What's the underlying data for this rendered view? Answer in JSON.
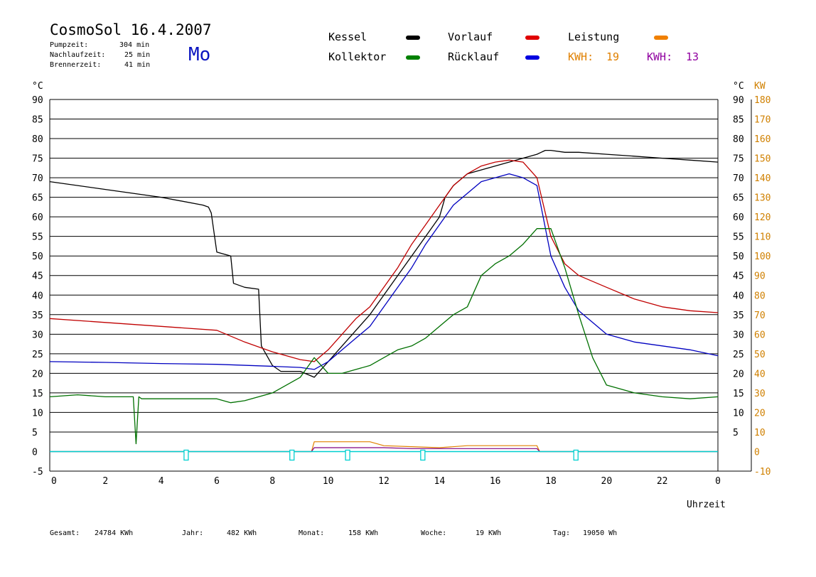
{
  "header": {
    "title": "CosmoSol 16.4.2007",
    "weekday": "Mo",
    "stats": [
      {
        "label": "Pumpzeit:",
        "value": "304 min"
      },
      {
        "label": "Nachlaufzeit:",
        "value": "25 min"
      },
      {
        "label": "Brennerzeit:",
        "value": "41 min"
      }
    ]
  },
  "legend": {
    "items": [
      {
        "name": "Kessel",
        "color": "#000000"
      },
      {
        "name": "Vorlauf",
        "color": "#e00000"
      },
      {
        "name": "Leistung",
        "color": "#f08000"
      },
      {
        "name": "Kollektor",
        "color": "#008000"
      },
      {
        "name": "Rücklauf",
        "color": "#0000e0"
      }
    ],
    "kwh": [
      {
        "label": "KWH:",
        "value": "19",
        "color": "#e08000"
      },
      {
        "label": "KWH:",
        "value": "13",
        "color": "#9000a0"
      }
    ]
  },
  "footer": [
    {
      "label": "Gesamt:",
      "value": "24784 KWh"
    },
    {
      "label": "Jahr:",
      "value": "482 KWh"
    },
    {
      "label": "Monat:",
      "value": "158 KWh"
    },
    {
      "label": "Woche:",
      "value": "19 KWh"
    },
    {
      "label": "Tag:",
      "value": "19050 Wh"
    }
  ],
  "colors": {
    "kessel": "#000000",
    "vorlauf": "#c00000",
    "ruecklauf": "#0000c0",
    "kollektor": "#007000",
    "leistung": "#e08000",
    "leistung2": "#800080",
    "pump": "#00d0d0",
    "kw_axis": "#d08000"
  },
  "chart_data": {
    "type": "line",
    "xlabel": "Uhrzeit",
    "ylabel_left": "°C",
    "ylabel_right_1": "°C",
    "ylabel_right_2": "KW",
    "xlim": [
      0,
      24
    ],
    "ylim": [
      -5,
      90
    ],
    "y2lim": [
      -10,
      180
    ],
    "x_ticks": [
      "0",
      "2",
      "4",
      "6",
      "8",
      "10",
      "12",
      "14",
      "16",
      "18",
      "20",
      "22",
      "0"
    ],
    "y_ticks_left": [
      -5,
      0,
      5,
      10,
      15,
      20,
      25,
      30,
      35,
      40,
      45,
      50,
      55,
      60,
      65,
      70,
      75,
      80,
      85,
      90
    ],
    "y_ticks_right": [
      5,
      10,
      15,
      20,
      25,
      30,
      35,
      40,
      45,
      50,
      55,
      60,
      65,
      70,
      75,
      80,
      85,
      90
    ],
    "y_ticks_kw": [
      -10,
      0,
      10,
      20,
      30,
      40,
      50,
      60,
      70,
      80,
      90,
      100,
      110,
      120,
      130,
      140,
      150,
      160,
      170,
      180
    ],
    "grid": "horizontal",
    "series": [
      {
        "name": "Kessel",
        "unit": "°C",
        "x": [
          0,
          2,
          4,
          5.5,
          5.7,
          5.8,
          6.0,
          6.5,
          6.6,
          7.0,
          7.5,
          7.6,
          8.0,
          8.3,
          8.5,
          9.0,
          9.5,
          10,
          10.5,
          11,
          11.5,
          12,
          12.5,
          13,
          13.5,
          14,
          14.2,
          14.5,
          15,
          15.5,
          16,
          16.5,
          17,
          17.5,
          17.8,
          18,
          18.5,
          19,
          20,
          21,
          22,
          23,
          24
        ],
        "y": [
          69,
          67,
          65,
          63,
          62.5,
          61,
          51,
          50,
          43,
          42,
          41.5,
          27,
          22,
          20.5,
          20.5,
          20.5,
          19,
          23,
          27,
          31,
          35,
          40,
          45,
          50,
          55,
          60,
          65,
          68,
          71,
          72,
          73,
          74,
          75,
          76,
          77,
          77,
          76.5,
          76.5,
          76,
          75.5,
          75,
          74.5,
          74
        ]
      },
      {
        "name": "Vorlauf",
        "unit": "°C",
        "x": [
          0,
          2,
          4,
          6,
          7,
          8,
          9,
          9.5,
          10,
          10.5,
          11,
          11.5,
          12,
          12.5,
          13,
          13.5,
          14,
          14.5,
          15,
          15.5,
          16,
          16.5,
          17,
          17.5,
          18,
          18.5,
          19,
          20,
          21,
          22,
          23,
          24
        ],
        "y": [
          34,
          33,
          32,
          31,
          28,
          25.5,
          23.5,
          23,
          26,
          30,
          34,
          37,
          42,
          47,
          53,
          58,
          63,
          68,
          71,
          73,
          74,
          74.5,
          74,
          70,
          55,
          48,
          45,
          42,
          39,
          37,
          36,
          35.5
        ]
      },
      {
        "name": "Rücklauf",
        "unit": "°C",
        "x": [
          0,
          2,
          4,
          6,
          8,
          9,
          9.5,
          10,
          10.5,
          11,
          11.5,
          12,
          12.5,
          13,
          13.5,
          14,
          14.5,
          15,
          15.5,
          16,
          16.5,
          17,
          17.5,
          18,
          18.5,
          19,
          20,
          21,
          22,
          23,
          24
        ],
        "y": [
          23,
          22.8,
          22.5,
          22.3,
          21.8,
          21.5,
          21,
          23,
          26,
          29,
          32,
          37,
          42,
          47,
          53,
          58,
          63,
          66,
          69,
          70,
          71,
          70,
          68,
          50,
          42,
          36,
          30,
          28,
          27,
          26,
          24.5
        ]
      },
      {
        "name": "Kollektor",
        "unit": "°C",
        "x": [
          0,
          1,
          2,
          3,
          3.1,
          3.2,
          3.3,
          4,
          5,
          6,
          6.5,
          7,
          8,
          9,
          9.5,
          10,
          10.5,
          11,
          11.5,
          12,
          12.5,
          13,
          13.5,
          14,
          14.5,
          15,
          15.5,
          16,
          16.5,
          17,
          17.5,
          18,
          18.5,
          19,
          19.5,
          20,
          20.5,
          21,
          22,
          23,
          24
        ],
        "y": [
          14,
          14.5,
          14,
          14,
          2,
          14,
          13.5,
          13.5,
          13.5,
          13.5,
          12.5,
          13,
          15,
          19,
          24,
          20,
          20,
          21,
          22,
          24,
          26,
          27,
          29,
          32,
          35,
          37,
          45,
          48,
          50,
          53,
          57,
          57,
          47,
          35,
          24,
          17,
          16,
          15,
          14,
          13.5,
          14
        ]
      },
      {
        "name": "Leistung",
        "unit": "KW",
        "x": [
          0,
          9.4,
          9.5,
          11.5,
          12,
          13,
          14,
          15,
          17.5,
          17.6,
          24
        ],
        "y": [
          0,
          0,
          5,
          5,
          3,
          2.5,
          2,
          3,
          3,
          0,
          0
        ]
      },
      {
        "name": "KWH",
        "unit": "KW",
        "x": [
          0,
          9.4,
          9.5,
          11.5,
          12,
          13,
          13.7,
          14,
          15,
          17.5,
          17.6,
          24
        ],
        "y": [
          0,
          0,
          2,
          2,
          2,
          1.5,
          1.5,
          1.5,
          1.5,
          1.5,
          0,
          0
        ]
      }
    ],
    "pump_pulses_x": [
      4.9,
      8.7,
      10.7,
      13.4,
      18.9
    ]
  }
}
